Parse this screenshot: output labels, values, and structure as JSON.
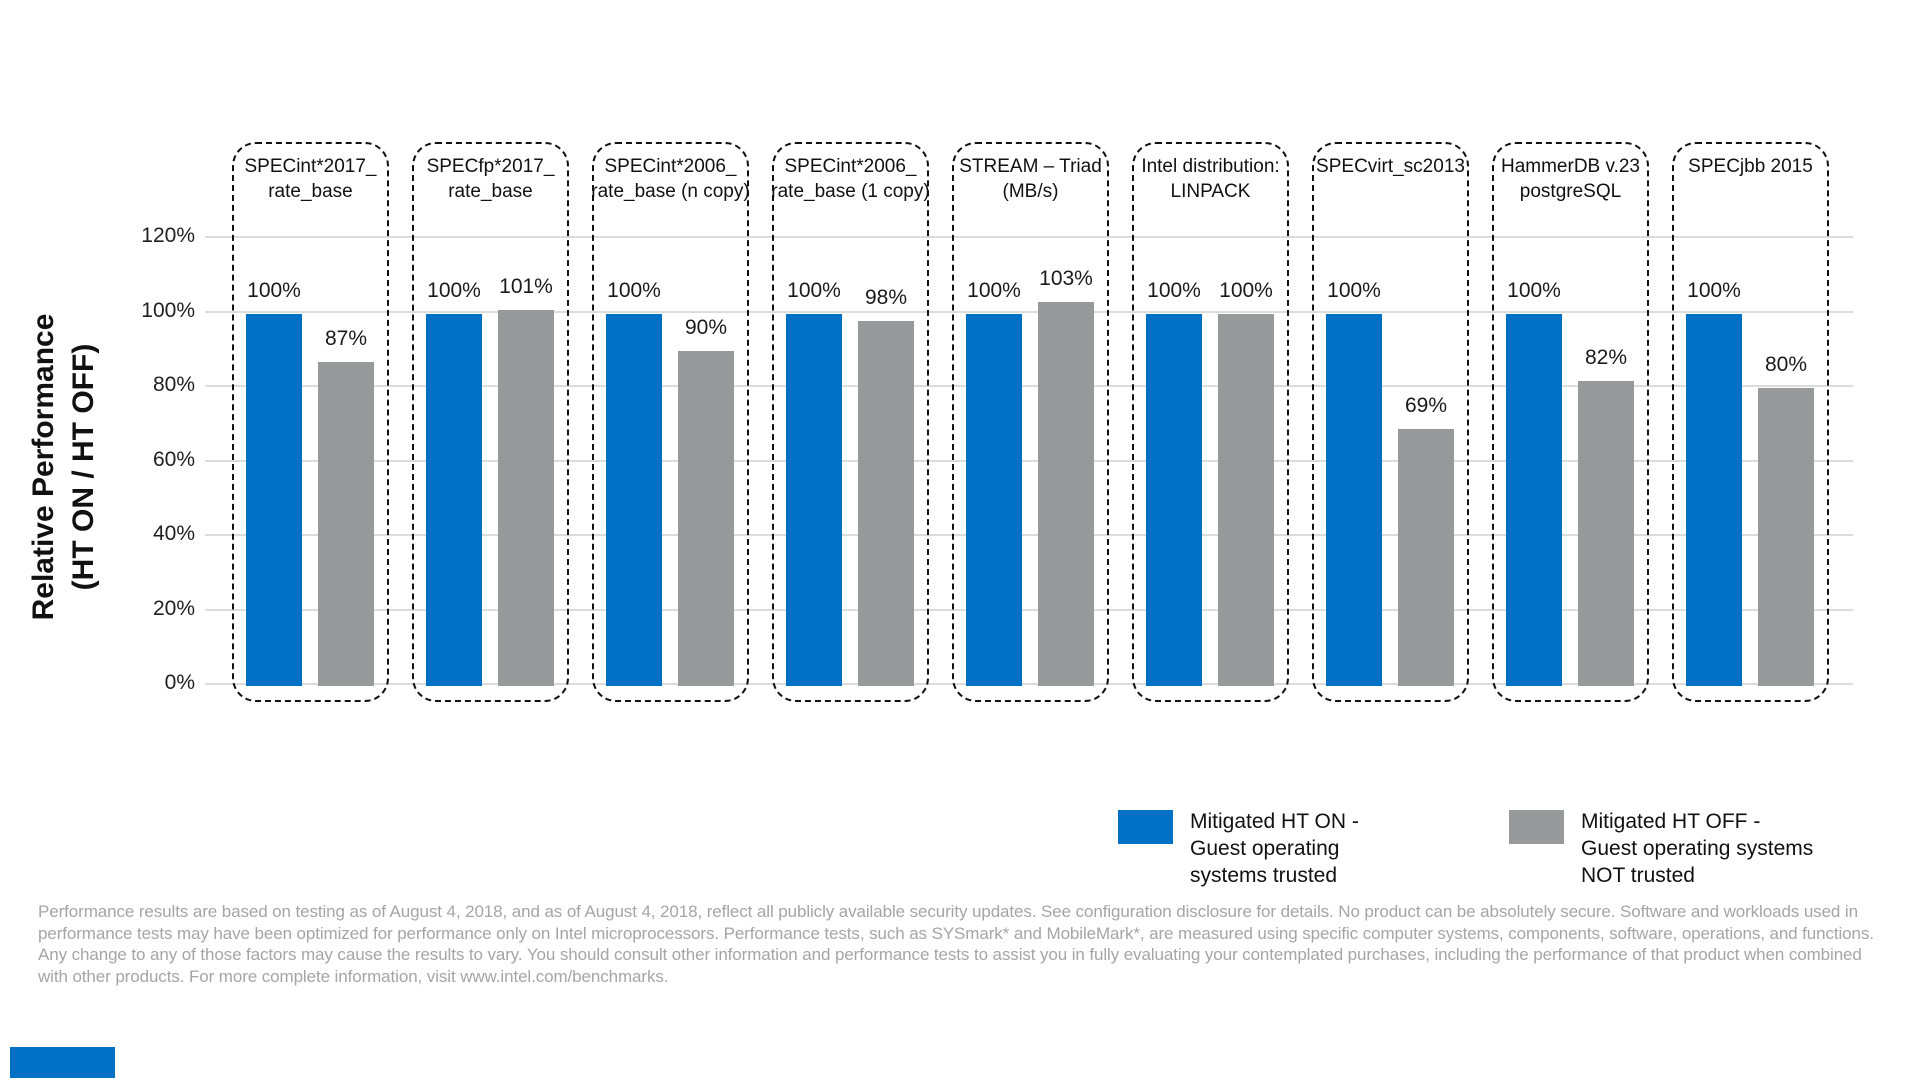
{
  "palette": {
    "intel_blue": "#0071c5",
    "bar_gray": "#97999b",
    "gridline_gray": "#dcdcdc",
    "footer_gray": "#a5a5a5"
  },
  "y_axis": {
    "title_line1": "Relative Performance",
    "title_line2": "(HT ON / HT OFF)"
  },
  "chart_data": {
    "type": "bar",
    "title": "",
    "ylabel": "Relative Performance (HT ON / HT OFF)",
    "ylim": [
      0,
      130
    ],
    "yticks_pct": [
      0,
      20,
      40,
      60,
      80,
      100,
      120
    ],
    "grid": true,
    "legend_position": "bottom-right",
    "categories": [
      "SPECint*2017_rate_base",
      "SPECfp*2017_rate_base",
      "SPECint*2006_rate_base (n copy)",
      "SPECint*2006_rate_base (1 copy)",
      "STREAM – Triad (MB/s)",
      "Intel distribution: LINPACK",
      "SPECvirt_sc2013",
      "HammerDB v.23 postgreSQL",
      "SPECjbb 2015"
    ],
    "category_lines": [
      [
        "SPECint*2017_",
        "rate_base"
      ],
      [
        "SPECfp*2017_",
        "rate_base"
      ],
      [
        "SPECint*2006_",
        "rate_base (n copy)"
      ],
      [
        "SPECint*2006_",
        "rate_base (1 copy)"
      ],
      [
        "STREAM – Triad",
        "(MB/s)"
      ],
      [
        "Intel distribution:",
        "LINPACK"
      ],
      [
        "SPECvirt_sc2013"
      ],
      [
        "HammerDB v.23",
        "postgreSQL"
      ],
      [
        "SPECjbb 2015"
      ]
    ],
    "series": [
      {
        "name": "Mitigated HT ON - Guest operating systems trusted",
        "values": [
          100,
          100,
          100,
          100,
          100,
          100,
          100,
          100,
          100
        ]
      },
      {
        "name": "Mitigated HT OFF - Guest operating systems NOT trusted",
        "values": [
          87,
          101,
          90,
          98,
          103,
          100,
          69,
          82,
          80
        ]
      }
    ],
    "value_label_suffix": "%"
  },
  "legend": {
    "items": [
      {
        "color": "#0071c5",
        "label_lines": [
          "Mitigated HT ON -",
          "Guest operating",
          "systems trusted"
        ]
      },
      {
        "color": "#97999b",
        "label_lines": [
          "Mitigated HT OFF -",
          "Guest operating systems",
          "NOT trusted"
        ]
      }
    ]
  },
  "footer": {
    "disclaimer": "Performance results are based on testing as of August 4, 2018, and as of August 4, 2018, reflect all publicly available security updates. See configuration disclosure for details. No product can be absolutely secure. Software and workloads used in performance tests may have been optimized for performance only on Intel microprocessors. Performance tests, such as SYSmark* and MobileMark*, are measured using specific computer systems, components, software, operations, and functions. Any change to any of those factors may cause the results to vary. You should consult other information and performance tests to assist you in fully evaluating your contemplated purchases, including the performance of that product when combined with other products. For more complete information, visit www.intel.com/benchmarks."
  }
}
